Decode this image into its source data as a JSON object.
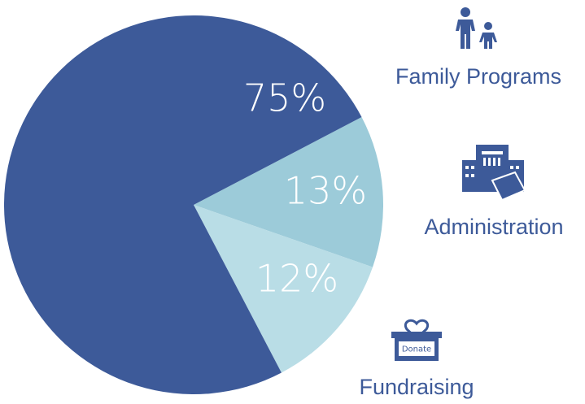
{
  "chart_data": {
    "type": "pie",
    "categories": [
      "Family Programs",
      "Administration",
      "Fundraising"
    ],
    "values": [
      75,
      13,
      12
    ],
    "value_labels": [
      "75%",
      "13%",
      "12%"
    ],
    "colors": [
      "#3d5a99",
      "#9ccbd9",
      "#b9dde6"
    ],
    "icon_text": "Donate"
  }
}
